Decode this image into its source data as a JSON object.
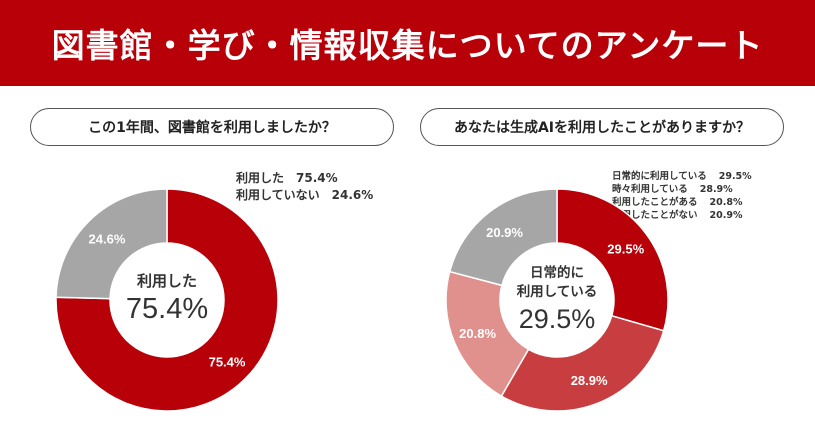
{
  "header": {
    "title": "図書館・学び・情報収集についてのアンケート"
  },
  "colors": {
    "banner": "#b80009",
    "red": "#b80009",
    "mid_red": "#c83d3f",
    "light_red": "#e0908d",
    "gray": "#a6a6a6"
  },
  "chart_data": [
    {
      "type": "pie",
      "title": "この1年間、図書館を利用しましたか？",
      "series": [
        {
          "name": "利用した",
          "value": 75.4,
          "label": "75.4%",
          "legend_value": "75.4%",
          "color": "#b80009"
        },
        {
          "name": "利用していない",
          "value": 24.6,
          "label": "24.6%",
          "legend_value": "24.6%",
          "color": "#a6a6a6"
        }
      ],
      "center": {
        "name_lines": [
          "利用した"
        ],
        "value": "75.4%"
      },
      "legend_position": "top-right"
    },
    {
      "type": "pie",
      "title": "あなたは生成AIを利用したことがありますか？",
      "series": [
        {
          "name": "日常的に利用している",
          "value": 29.5,
          "label": "29.5%",
          "legend_value": "29.5%",
          "color": "#b80009"
        },
        {
          "name": "時々利用している",
          "value": 28.9,
          "label": "28.9%",
          "legend_value": "28.9%",
          "color": "#c83d3f"
        },
        {
          "name": "利用したことがある",
          "value": 20.8,
          "label": "20.8%",
          "legend_value": "20.8%",
          "color": "#e0908d"
        },
        {
          "name": "利用したことがない",
          "value": 20.9,
          "label": "20.9%",
          "legend_value": "20.9%",
          "color": "#a6a6a6"
        }
      ],
      "center": {
        "name_lines": [
          "日常的に",
          "利用している"
        ],
        "value": "29.5%"
      },
      "legend_position": "top-right"
    }
  ]
}
